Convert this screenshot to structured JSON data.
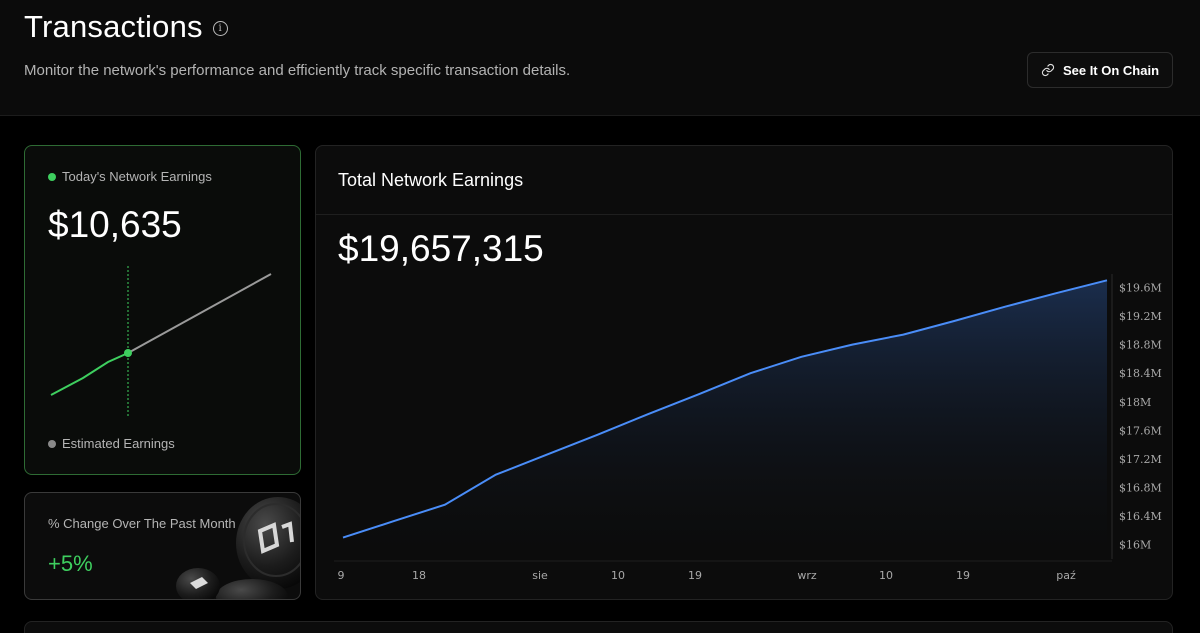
{
  "header": {
    "title": "Transactions",
    "info_icon": "info-icon",
    "subtitle": "Monitor the network's performance and efficiently track specific transaction details.",
    "chain_button": {
      "label": "See It On Chain",
      "icon": "link-icon"
    }
  },
  "today_card": {
    "label": "Today's Network Earnings",
    "value": "$10,635",
    "estimated_label": "Estimated Earnings",
    "colors": {
      "actual": "#3ecf5f",
      "estimated": "#9a9a9a"
    }
  },
  "change_card": {
    "label": "% Change Over The Past Month",
    "value": "+5%"
  },
  "total_card": {
    "title": "Total Network Earnings",
    "value": "$19,657,315"
  },
  "chart_data": {
    "type": "area",
    "title": "",
    "xlabel": "",
    "ylabel": "",
    "x_ticks": [
      "9",
      "18",
      "sie",
      "10",
      "19",
      "wrz",
      "10",
      "19",
      "paź"
    ],
    "y_ticks": [
      "$16M",
      "$16.4M",
      "$16.8M",
      "$17.2M",
      "$17.6M",
      "$18M",
      "$18.4M",
      "$18.8M",
      "$19.2M",
      "$19.6M"
    ],
    "ylim": [
      15.8,
      19.9
    ],
    "series": [
      {
        "values": [
          16.1,
          16.33,
          16.56,
          16.98,
          17.26,
          17.54,
          17.83,
          18.11,
          18.4,
          18.63,
          18.8,
          18.94,
          19.13,
          19.33,
          19.52,
          19.7
        ],
        "color": "#4a8df8"
      }
    ],
    "grid": false
  }
}
